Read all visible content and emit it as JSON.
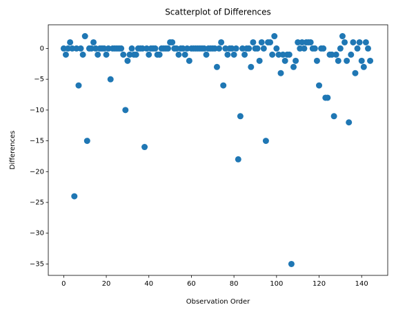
{
  "chart_data": {
    "type": "scatter",
    "title": "Scatterplot of Differences",
    "x_label": "Observation Order",
    "y_label": "Differences",
    "color": "#1f77b4",
    "x": [
      0,
      1,
      2,
      3,
      4,
      5,
      6,
      7,
      8,
      9,
      10,
      11,
      12,
      13,
      14,
      15,
      16,
      17,
      18,
      19,
      20,
      21,
      22,
      23,
      24,
      25,
      26,
      27,
      28,
      29,
      30,
      31,
      32,
      33,
      34,
      35,
      36,
      37,
      38,
      39,
      40,
      41,
      42,
      43,
      44,
      45,
      46,
      47,
      48,
      49,
      50,
      51,
      52,
      53,
      54,
      55,
      56,
      57,
      58,
      59,
      60,
      61,
      62,
      63,
      64,
      65,
      66,
      67,
      68,
      69,
      70,
      71,
      72,
      73,
      74,
      75,
      76,
      77,
      78,
      79,
      80,
      81,
      82,
      83,
      84,
      85,
      86,
      87,
      88,
      89,
      90,
      91,
      92,
      93,
      94,
      95,
      96,
      97,
      98,
      99,
      100,
      101,
      102,
      103,
      104,
      105,
      106,
      107,
      108,
      109,
      110,
      111,
      112,
      113,
      114,
      115,
      116,
      117,
      118,
      119,
      120,
      121,
      122,
      123,
      124,
      125,
      126,
      127,
      128,
      129,
      130,
      131,
      132,
      133,
      134,
      135,
      136,
      137,
      138,
      139,
      140,
      141,
      142,
      143,
      144
    ],
    "values": [
      0,
      -1,
      0,
      1,
      0,
      -24,
      0,
      -6,
      0,
      -1,
      2,
      -15,
      0,
      0,
      1,
      0,
      -1,
      0,
      0,
      0,
      -1,
      0,
      -5,
      0,
      0,
      0,
      0,
      0,
      -1,
      -10,
      -2,
      -1,
      0,
      -1,
      -1,
      0,
      0,
      0,
      -16,
      0,
      -1,
      0,
      0,
      0,
      -1,
      -1,
      0,
      0,
      0,
      0,
      1,
      1,
      0,
      0,
      -1,
      0,
      0,
      -1,
      0,
      -2,
      0,
      0,
      0,
      0,
      0,
      0,
      0,
      -1,
      0,
      0,
      0,
      0,
      -3,
      0,
      1,
      -6,
      0,
      -1,
      0,
      0,
      -1,
      0,
      -18,
      -11,
      0,
      -1,
      0,
      0,
      -3,
      1,
      0,
      0,
      -2,
      1,
      0,
      -15,
      1,
      1,
      -1,
      2,
      0,
      -1,
      -4,
      -1,
      -2,
      -1,
      -1,
      -35,
      -3,
      -2,
      1,
      0,
      1,
      0,
      1,
      1,
      1,
      0,
      0,
      -2,
      -6,
      0,
      0,
      -8,
      -8,
      -1,
      -1,
      -11,
      -1,
      -2,
      0,
      2,
      1,
      -2,
      -12,
      -1,
      1,
      -4,
      0,
      1,
      -2,
      -3,
      1,
      0,
      -2
    ],
    "xlim": [
      -7.25,
      152.25
    ],
    "ylim": [
      -36.85,
      3.85
    ],
    "xticks": [
      0,
      20,
      40,
      60,
      80,
      100,
      120,
      140
    ],
    "yticks": [
      {
        "value": -35,
        "label": "−35"
      },
      {
        "value": -30,
        "label": "−30"
      },
      {
        "value": -25,
        "label": "−25"
      },
      {
        "value": -20,
        "label": "−20"
      },
      {
        "value": -15,
        "label": "−15"
      },
      {
        "value": -10,
        "label": "−10"
      },
      {
        "value": -5,
        "label": "−5"
      },
      0
    ]
  }
}
